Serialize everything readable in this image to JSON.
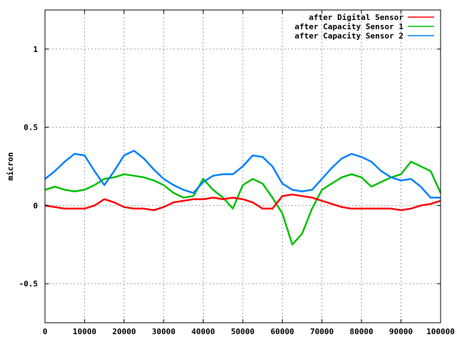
{
  "chart_data": {
    "type": "line",
    "title": "",
    "xlabel": "",
    "ylabel": "micron",
    "xlim": [
      0,
      100000
    ],
    "ylim": [
      -0.75,
      1.25
    ],
    "grid": true,
    "legend_position": "top-right",
    "xticks": [
      0,
      10000,
      20000,
      30000,
      40000,
      50000,
      60000,
      70000,
      80000,
      90000,
      100000
    ],
    "xtick_labels": [
      "0",
      "10000",
      "20000",
      "30000",
      "40000",
      "50000",
      "60000",
      "70000",
      "80000",
      "90000",
      "100000"
    ],
    "yticks": [
      -0.5,
      0,
      0.5,
      1
    ],
    "ytick_labels": [
      "-0.5",
      "0",
      "0.5",
      "1"
    ],
    "x": [
      0,
      2500,
      5000,
      7500,
      10000,
      12500,
      15000,
      17500,
      20000,
      22500,
      25000,
      27500,
      30000,
      32500,
      35000,
      37500,
      40000,
      42500,
      45000,
      47500,
      50000,
      52500,
      55000,
      57500,
      60000,
      62500,
      65000,
      67500,
      70000,
      72500,
      75000,
      77500,
      80000,
      82500,
      85000,
      87500,
      90000,
      92500,
      95000,
      97500,
      100000
    ],
    "series": [
      {
        "name": "after Digital Sensor",
        "color": "#ff0000",
        "values": [
          0.0,
          -0.01,
          -0.02,
          -0.02,
          -0.02,
          0.0,
          0.04,
          0.02,
          -0.01,
          -0.02,
          -0.02,
          -0.03,
          -0.01,
          0.02,
          0.03,
          0.04,
          0.04,
          0.05,
          0.04,
          0.05,
          0.04,
          0.02,
          -0.02,
          -0.02,
          0.06,
          0.07,
          0.06,
          0.05,
          0.03,
          0.01,
          -0.01,
          -0.02,
          -0.02,
          -0.02,
          -0.02,
          -0.02,
          -0.03,
          -0.02,
          0.0,
          0.01,
          0.03
        ]
      },
      {
        "name": "after Capacity Sensor 1",
        "color": "#00c000",
        "values": [
          0.1,
          0.12,
          0.1,
          0.09,
          0.1,
          0.13,
          0.17,
          0.18,
          0.2,
          0.19,
          0.18,
          0.16,
          0.13,
          0.08,
          0.05,
          0.06,
          0.17,
          0.1,
          0.05,
          -0.02,
          0.13,
          0.17,
          0.14,
          0.05,
          -0.05,
          -0.25,
          -0.18,
          -0.02,
          0.1,
          0.14,
          0.18,
          0.2,
          0.18,
          0.12,
          0.15,
          0.18,
          0.2,
          0.28,
          0.25,
          0.22,
          0.08
        ]
      },
      {
        "name": "after Capacity Sensor 2",
        "color": "#0080ff",
        "values": [
          0.17,
          0.22,
          0.28,
          0.33,
          0.32,
          0.22,
          0.13,
          0.22,
          0.32,
          0.35,
          0.3,
          0.23,
          0.17,
          0.13,
          0.1,
          0.08,
          0.15,
          0.19,
          0.2,
          0.2,
          0.25,
          0.32,
          0.31,
          0.25,
          0.14,
          0.1,
          0.09,
          0.1,
          0.17,
          0.24,
          0.3,
          0.33,
          0.31,
          0.28,
          0.22,
          0.18,
          0.16,
          0.17,
          0.12,
          0.05,
          0.05
        ]
      }
    ]
  }
}
